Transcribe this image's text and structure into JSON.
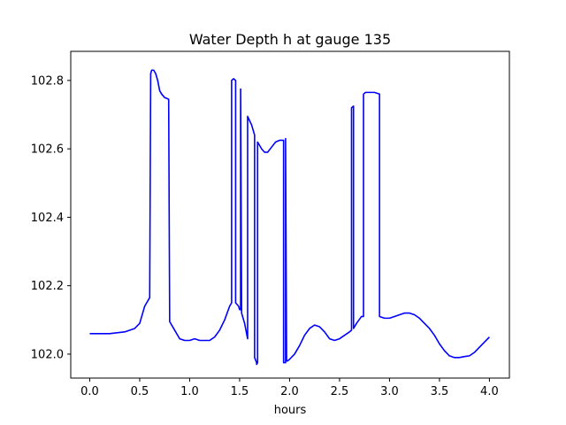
{
  "chart_data": {
    "type": "line",
    "title": "Water Depth h at gauge 135",
    "xlabel": "hours",
    "ylabel": "",
    "xlim": [
      -0.19,
      4.2
    ],
    "ylim": [
      101.93,
      102.885
    ],
    "xticks": [
      0.0,
      0.5,
      1.0,
      1.5,
      2.0,
      2.5,
      3.0,
      3.5,
      4.0
    ],
    "xtick_labels": [
      "0.0",
      "0.5",
      "1.0",
      "1.5",
      "2.0",
      "2.5",
      "3.0",
      "3.5",
      "4.0"
    ],
    "yticks": [
      102.0,
      102.2,
      102.4,
      102.6,
      102.8
    ],
    "ytick_labels": [
      "102.0",
      "102.2",
      "102.4",
      "102.6",
      "102.8"
    ],
    "grid": false,
    "series": [
      {
        "color": "#0000ff",
        "x": [
          0.0,
          0.2,
          0.35,
          0.45,
          0.5,
          0.55,
          0.6,
          0.61,
          0.62,
          0.64,
          0.66,
          0.68,
          0.7,
          0.72,
          0.75,
          0.79,
          0.8,
          0.85,
          0.9,
          0.95,
          1.0,
          1.05,
          1.1,
          1.2,
          1.25,
          1.3,
          1.35,
          1.4,
          1.42,
          1.42,
          1.44,
          1.46,
          1.46,
          1.49,
          1.5,
          1.51,
          1.51,
          1.52,
          1.55,
          1.58,
          1.58,
          1.62,
          1.65,
          1.65,
          1.67,
          1.67,
          1.68,
          1.68,
          1.72,
          1.75,
          1.78,
          1.82,
          1.86,
          1.9,
          1.94,
          1.94,
          1.95,
          1.96,
          1.96,
          1.97,
          1.98,
          2.0,
          2.05,
          2.1,
          2.15,
          2.2,
          2.25,
          2.3,
          2.35,
          2.4,
          2.45,
          2.5,
          2.55,
          2.6,
          2.62,
          2.62,
          2.64,
          2.64,
          2.67,
          2.72,
          2.74,
          2.74,
          2.76,
          2.8,
          2.85,
          2.9,
          2.9,
          2.95,
          3.0,
          3.05,
          3.1,
          3.15,
          3.2,
          3.25,
          3.3,
          3.35,
          3.4,
          3.45,
          3.5,
          3.55,
          3.6,
          3.65,
          3.7,
          3.75,
          3.8,
          3.85,
          3.9,
          3.95,
          4.0
        ],
        "y": [
          102.06,
          102.06,
          102.065,
          102.075,
          102.09,
          102.14,
          102.165,
          102.82,
          102.83,
          102.83,
          102.82,
          102.8,
          102.77,
          102.76,
          102.75,
          102.745,
          102.095,
          102.07,
          102.045,
          102.04,
          102.04,
          102.045,
          102.04,
          102.04,
          102.05,
          102.07,
          102.1,
          102.14,
          102.15,
          102.8,
          102.805,
          102.8,
          102.15,
          102.14,
          102.13,
          102.13,
          102.775,
          102.12,
          102.09,
          102.045,
          102.695,
          102.67,
          102.64,
          101.99,
          101.975,
          101.97,
          101.975,
          102.62,
          102.6,
          102.59,
          102.59,
          102.605,
          102.62,
          102.625,
          102.625,
          101.975,
          101.975,
          101.975,
          102.63,
          101.98,
          101.98,
          101.985,
          102.0,
          102.025,
          102.055,
          102.075,
          102.085,
          102.08,
          102.065,
          102.045,
          102.04,
          102.045,
          102.055,
          102.065,
          102.07,
          102.72,
          102.725,
          102.075,
          102.09,
          102.11,
          102.11,
          102.76,
          102.765,
          102.765,
          102.765,
          102.76,
          102.11,
          102.105,
          102.105,
          102.11,
          102.115,
          102.12,
          102.12,
          102.115,
          102.105,
          102.09,
          102.075,
          102.055,
          102.03,
          102.01,
          101.995,
          101.99,
          101.99,
          101.993,
          101.995,
          102.005,
          102.02,
          102.035,
          102.05
        ]
      }
    ]
  }
}
